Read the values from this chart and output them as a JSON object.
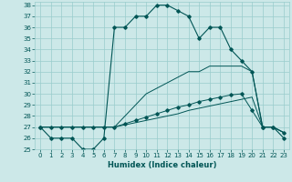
{
  "title": "",
  "xlabel": "Humidex (Indice chaleur)",
  "hours": [
    0,
    1,
    2,
    3,
    4,
    5,
    6,
    7,
    8,
    9,
    10,
    11,
    12,
    13,
    14,
    15,
    16,
    17,
    18,
    19,
    20,
    21,
    22,
    23
  ],
  "line1": [
    27,
    26,
    26,
    26,
    25,
    25,
    26,
    36,
    36,
    37,
    37,
    38,
    38,
    37.5,
    37,
    35,
    36,
    36,
    34,
    33,
    32,
    27,
    27,
    26
  ],
  "line2_no_marker": [
    27,
    27,
    27,
    27,
    27,
    27,
    27,
    27,
    27.2,
    27.4,
    27.6,
    27.8,
    28.0,
    28.2,
    28.5,
    28.7,
    28.9,
    29.1,
    29.3,
    29.5,
    29.7,
    27,
    27,
    26.5
  ],
  "line3_marker": [
    27,
    27,
    27,
    27,
    27,
    27,
    27,
    27,
    27.3,
    27.6,
    27.9,
    28.2,
    28.5,
    28.8,
    29.0,
    29.3,
    29.5,
    29.7,
    29.9,
    30.0,
    28.5,
    27,
    27,
    26.5
  ],
  "line4_no_marker": [
    27,
    27,
    27,
    27,
    27,
    27,
    27,
    27,
    28,
    29,
    30,
    30.5,
    31,
    31.5,
    32,
    32,
    32.5,
    32.5,
    32.5,
    32.5,
    32,
    27,
    27,
    26.5
  ],
  "ylim_min": 25,
  "ylim_max": 38,
  "xlim_min": 0,
  "xlim_max": 23,
  "yticks": [
    25,
    26,
    27,
    28,
    29,
    30,
    31,
    32,
    33,
    34,
    35,
    36,
    37,
    38
  ],
  "xticks": [
    0,
    1,
    2,
    3,
    4,
    5,
    6,
    7,
    8,
    9,
    10,
    11,
    12,
    13,
    14,
    15,
    16,
    17,
    18,
    19,
    20,
    21,
    22,
    23
  ],
  "bg_color": "#cce8e8",
  "grid_color": "#99cccc",
  "line_color": "#005555",
  "marker": "D",
  "marker_size": 1.8,
  "linewidth": 0.8,
  "thin_linewidth": 0.7,
  "tick_fontsize": 5,
  "xlabel_fontsize": 6
}
